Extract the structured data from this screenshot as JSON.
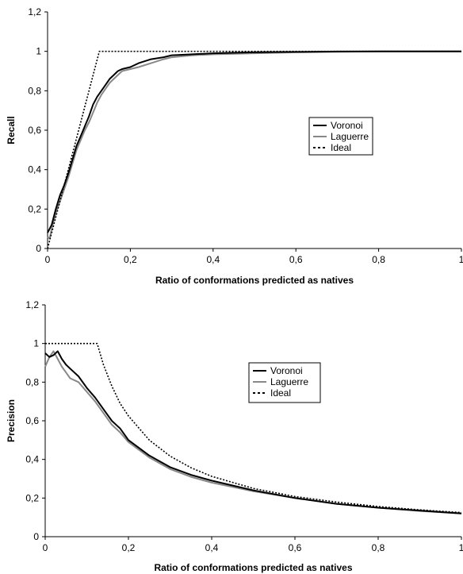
{
  "chart_data": [
    {
      "type": "line",
      "xlabel": "Ratio of conformations predicted as natives",
      "ylabel": "Recall",
      "xlim": [
        0,
        1
      ],
      "ylim": [
        0,
        1.2
      ],
      "x_ticks": [
        "0",
        "0,2",
        "0,4",
        "0,6",
        "0,8",
        "1"
      ],
      "y_ticks": [
        "0",
        "0,2",
        "0,4",
        "0,6",
        "0,8",
        "1",
        "1,2"
      ],
      "grid": false,
      "legend_position": "right-center",
      "series": [
        {
          "name": "Voronoi",
          "color": "#000000",
          "style": "solid",
          "x": [
            0,
            0.005,
            0.01,
            0.02,
            0.03,
            0.04,
            0.05,
            0.06,
            0.07,
            0.08,
            0.09,
            0.1,
            0.11,
            0.12,
            0.13,
            0.14,
            0.15,
            0.16,
            0.17,
            0.18,
            0.2,
            0.22,
            0.25,
            0.28,
            0.3,
            0.35,
            0.4,
            0.5,
            0.6,
            0.7,
            0.8,
            0.9,
            1.0
          ],
          "y": [
            0.08,
            0.1,
            0.12,
            0.2,
            0.27,
            0.32,
            0.38,
            0.45,
            0.52,
            0.57,
            0.62,
            0.67,
            0.73,
            0.77,
            0.8,
            0.83,
            0.86,
            0.88,
            0.9,
            0.91,
            0.92,
            0.94,
            0.96,
            0.97,
            0.98,
            0.985,
            0.99,
            0.995,
            0.997,
            0.999,
            1.0,
            1.0,
            1.0
          ]
        },
        {
          "name": "Laguerre",
          "color": "#888888",
          "style": "solid",
          "x": [
            0,
            0.005,
            0.01,
            0.02,
            0.03,
            0.04,
            0.05,
            0.06,
            0.07,
            0.08,
            0.09,
            0.1,
            0.11,
            0.12,
            0.13,
            0.14,
            0.15,
            0.16,
            0.17,
            0.18,
            0.2,
            0.22,
            0.25,
            0.28,
            0.3,
            0.35,
            0.4,
            0.5,
            0.6,
            0.7,
            0.8,
            0.9,
            1.0
          ],
          "y": [
            0.06,
            0.05,
            0.1,
            0.18,
            0.24,
            0.3,
            0.36,
            0.43,
            0.5,
            0.55,
            0.6,
            0.64,
            0.69,
            0.74,
            0.78,
            0.81,
            0.84,
            0.86,
            0.88,
            0.9,
            0.91,
            0.92,
            0.94,
            0.96,
            0.97,
            0.98,
            0.985,
            0.99,
            0.995,
            0.998,
            1.0,
            1.0,
            1.0
          ]
        },
        {
          "name": "Ideal",
          "color": "#000000",
          "style": "dotted",
          "x": [
            0,
            0.125,
            1.0
          ],
          "y": [
            0,
            1.0,
            1.0
          ]
        }
      ]
    },
    {
      "type": "line",
      "xlabel": "Ratio of conformations predicted as natives",
      "ylabel": "Precision",
      "xlim": [
        0,
        1
      ],
      "ylim": [
        0,
        1.2
      ],
      "x_ticks": [
        "0",
        "0,2",
        "0,4",
        "0,6",
        "0,8",
        "1"
      ],
      "y_ticks": [
        "0",
        "0,2",
        "0,4",
        "0,6",
        "0,8",
        "1",
        "1,2"
      ],
      "grid": false,
      "legend_position": "right-center",
      "series": [
        {
          "name": "Voronoi",
          "color": "#000000",
          "style": "solid",
          "x": [
            0,
            0.01,
            0.02,
            0.03,
            0.04,
            0.05,
            0.06,
            0.08,
            0.1,
            0.12,
            0.14,
            0.16,
            0.18,
            0.2,
            0.25,
            0.3,
            0.35,
            0.4,
            0.5,
            0.6,
            0.7,
            0.8,
            0.9,
            1.0
          ],
          "y": [
            0.95,
            0.93,
            0.94,
            0.96,
            0.92,
            0.89,
            0.87,
            0.83,
            0.77,
            0.72,
            0.66,
            0.6,
            0.56,
            0.5,
            0.42,
            0.36,
            0.32,
            0.29,
            0.24,
            0.2,
            0.17,
            0.15,
            0.135,
            0.12
          ]
        },
        {
          "name": "Laguerre",
          "color": "#888888",
          "style": "solid",
          "x": [
            0,
            0.01,
            0.02,
            0.03,
            0.04,
            0.05,
            0.06,
            0.08,
            0.1,
            0.12,
            0.14,
            0.16,
            0.18,
            0.2,
            0.25,
            0.3,
            0.35,
            0.4,
            0.5,
            0.6,
            0.7,
            0.8,
            0.9,
            1.0
          ],
          "y": [
            0.88,
            0.93,
            0.96,
            0.92,
            0.88,
            0.85,
            0.82,
            0.8,
            0.75,
            0.7,
            0.64,
            0.58,
            0.54,
            0.49,
            0.41,
            0.35,
            0.31,
            0.28,
            0.235,
            0.2,
            0.17,
            0.15,
            0.133,
            0.12
          ]
        },
        {
          "name": "Ideal",
          "color": "#000000",
          "style": "dotted",
          "x": [
            0,
            0.125,
            0.14,
            0.16,
            0.18,
            0.2,
            0.25,
            0.3,
            0.35,
            0.4,
            0.5,
            0.6,
            0.7,
            0.8,
            0.9,
            1.0
          ],
          "y": [
            1.0,
            1.0,
            0.89,
            0.78,
            0.69,
            0.625,
            0.5,
            0.417,
            0.357,
            0.3125,
            0.25,
            0.208,
            0.179,
            0.156,
            0.139,
            0.125
          ]
        }
      ]
    }
  ]
}
